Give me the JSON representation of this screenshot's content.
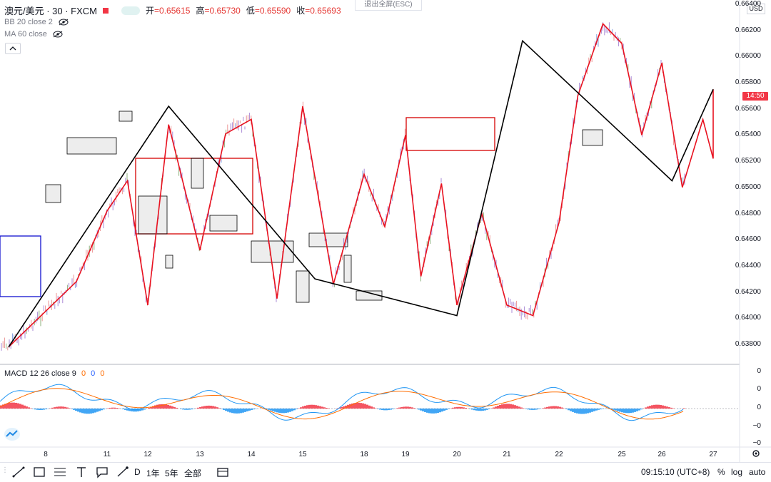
{
  "header": {
    "symbol": "澳元/美元 · 30 · FXCM",
    "ohlc": [
      {
        "label": "开",
        "value": "=0.65615"
      },
      {
        "label": "高",
        "value": "=0.65730"
      },
      {
        "label": "低",
        "value": "=0.65590"
      },
      {
        "label": "收",
        "value": "=0.65693"
      }
    ],
    "indicators": [
      "BB 20 close 2",
      "MA 60 close"
    ],
    "exit_fullscreen": "退出全屏(ESC)",
    "currency": "USD"
  },
  "price_axis": {
    "labels": [
      "0.66400",
      "0.66200",
      "0.66000",
      "0.65800",
      "0.65600",
      "0.65400",
      "0.65200",
      "0.65000",
      "0.64800",
      "0.64600",
      "0.64400",
      "0.64200",
      "0.64000",
      "0.63800"
    ],
    "current_tag": "14:50"
  },
  "time_axis": {
    "labels": [
      "8",
      "11",
      "12",
      "13",
      "14",
      "15",
      "18",
      "19",
      "20",
      "21",
      "22",
      "25",
      "26",
      "27"
    ]
  },
  "macd": {
    "legend": "MACD 12 26 close 9",
    "values": [
      "0",
      "0",
      "0"
    ],
    "axis_labels": [
      "0",
      "0",
      "0",
      "−0",
      "−0"
    ]
  },
  "bottom_bar": {
    "periods": [
      "D",
      "1年",
      "5年",
      "全部"
    ],
    "clock": "09:15:10 (UTC+8)",
    "percent": "%",
    "log": "log",
    "auto": "auto"
  },
  "colors": {
    "up": "#26a69a",
    "down": "#ef5350",
    "zigzag_red": "#e8111f",
    "zigzag_black": "#000000",
    "box_red": "#d50000",
    "box_blue": "#1010d0",
    "macd_line": "#2196f3",
    "signal_line": "#ff6d00"
  },
  "chart_data": {
    "type": "line",
    "title": "澳元/美元 · 30 · FXCM",
    "ylim": [
      0.6372,
      0.6642
    ],
    "x_categories": [
      "8",
      "11",
      "12",
      "13",
      "14",
      "15",
      "18",
      "19",
      "20",
      "21",
      "22",
      "25",
      "26",
      "27"
    ],
    "series": [
      {
        "x": [
          0.0,
          0.5,
          1.0,
          1.5,
          2.0,
          2.4,
          3.0,
          3.5,
          4.0,
          4.5,
          5.0,
          5.5,
          6.0,
          6.5,
          7.0,
          7.3,
          7.7,
          8.0,
          8.5,
          9.0,
          9.5,
          10.0,
          10.3,
          10.7,
          11.0,
          11.5,
          12.0,
          12.4,
          12.8,
          13.1,
          13.5,
          13.8
        ],
        "y": [
          0.6378,
          0.6428,
          0.6482,
          0.6505,
          0.641,
          0.6548,
          0.6452,
          0.6541,
          0.6552,
          0.6415,
          0.6562,
          0.6426,
          0.651,
          0.647,
          0.654,
          0.6432,
          0.6503,
          0.641,
          0.648,
          0.641,
          0.6402,
          0.6473,
          0.657,
          0.6625,
          0.661,
          0.654,
          0.6595,
          0.65,
          0.6552,
          0.6522,
          0.6548,
          0.6575
        ]
      },
      {
        "x": [
          0.0,
          2.4,
          5.2,
          8.0,
          9.3,
          12.2,
          13.8
        ],
        "y": [
          0.6378,
          0.6562,
          0.643,
          0.6402,
          0.6612,
          0.6505,
          0.6575
        ]
      }
    ]
  }
}
